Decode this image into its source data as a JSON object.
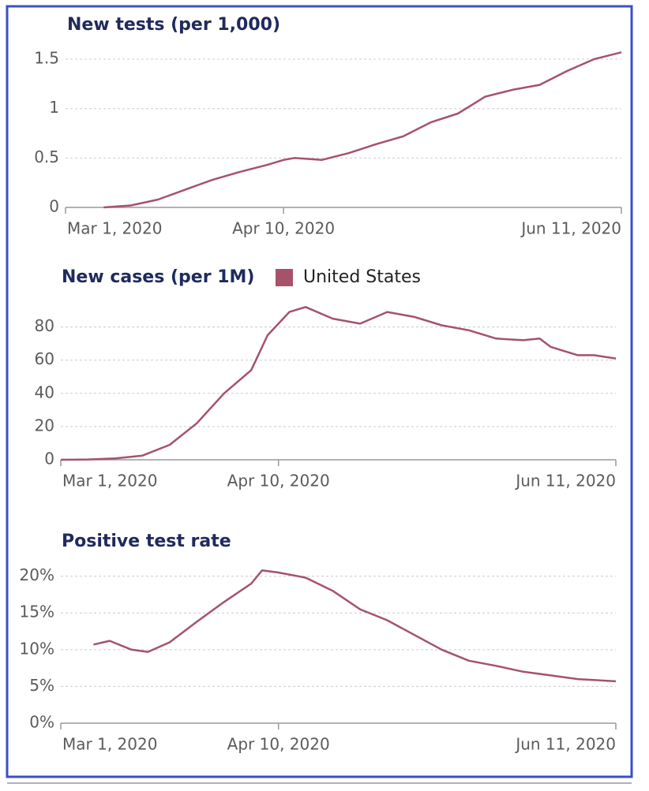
{
  "chart_data": [
    {
      "type": "line",
      "title": "New tests (per 1,000)",
      "color": "#a4536a",
      "grid": true,
      "x": [
        "2020-03-08",
        "2020-03-13",
        "2020-03-18",
        "2020-03-23",
        "2020-03-28",
        "2020-04-02",
        "2020-04-07",
        "2020-04-10",
        "2020-04-12",
        "2020-04-17",
        "2020-04-22",
        "2020-04-27",
        "2020-05-02",
        "2020-05-07",
        "2020-05-12",
        "2020-05-17",
        "2020-05-22",
        "2020-05-27",
        "2020-06-01",
        "2020-06-06",
        "2020-06-11"
      ],
      "values": [
        0,
        0.02,
        0.08,
        0.18,
        0.28,
        0.36,
        0.43,
        0.48,
        0.5,
        0.48,
        0.55,
        0.64,
        0.72,
        0.86,
        0.95,
        1.12,
        1.19,
        1.24,
        1.38,
        1.5,
        1.57
      ],
      "xlim": [
        "2020-03-01",
        "2020-06-11"
      ],
      "xticks": [
        {
          "value": "2020-03-01",
          "label": "Mar 1, 2020"
        },
        {
          "value": "2020-04-10",
          "label": "Apr 10, 2020"
        },
        {
          "value": "2020-06-11",
          "label": "Jun 11, 2020"
        }
      ],
      "ylim": [
        0,
        1.6
      ],
      "yticks": [
        0,
        0.5,
        1,
        1.5
      ]
    },
    {
      "type": "line",
      "title": "New cases (per 1M)",
      "grid": true,
      "x": [
        "2020-03-01",
        "2020-03-06",
        "2020-03-11",
        "2020-03-16",
        "2020-03-21",
        "2020-03-26",
        "2020-03-31",
        "2020-04-05",
        "2020-04-08",
        "2020-04-12",
        "2020-04-15",
        "2020-04-20",
        "2020-04-25",
        "2020-04-30",
        "2020-05-05",
        "2020-05-10",
        "2020-05-15",
        "2020-05-20",
        "2020-05-25",
        "2020-05-28",
        "2020-05-30",
        "2020-06-04",
        "2020-06-07",
        "2020-06-11"
      ],
      "series": [
        {
          "name": "United States",
          "color": "#a4536a",
          "values": [
            0,
            0.2,
            0.8,
            2.5,
            9,
            22,
            40,
            54,
            75,
            89,
            92,
            85,
            82,
            89,
            86,
            81,
            78,
            73,
            72,
            73,
            68,
            63,
            63,
            61
          ]
        }
      ],
      "xlim": [
        "2020-03-01",
        "2020-06-11"
      ],
      "xticks": [
        {
          "value": "2020-03-01",
          "label": "Mar 1, 2020"
        },
        {
          "value": "2020-04-10",
          "label": "Apr 10, 2020"
        },
        {
          "value": "2020-06-11",
          "label": "Jun 11, 2020"
        }
      ],
      "ylim": [
        0,
        95
      ],
      "yticks": [
        0,
        20,
        40,
        60,
        80
      ]
    },
    {
      "type": "line",
      "title": "Positive test rate",
      "color": "#a4536a",
      "grid": true,
      "x": [
        "2020-03-07",
        "2020-03-10",
        "2020-03-14",
        "2020-03-17",
        "2020-03-21",
        "2020-03-26",
        "2020-03-31",
        "2020-04-05",
        "2020-04-07",
        "2020-04-10",
        "2020-04-15",
        "2020-04-20",
        "2020-04-25",
        "2020-04-30",
        "2020-05-05",
        "2020-05-10",
        "2020-05-15",
        "2020-05-20",
        "2020-05-25",
        "2020-05-30",
        "2020-06-04",
        "2020-06-11"
      ],
      "values": [
        10.7,
        11.2,
        10,
        9.7,
        11,
        13.8,
        16.5,
        19,
        20.8,
        20.5,
        19.8,
        18,
        15.5,
        14,
        12,
        10,
        8.5,
        7.8,
        7,
        6.5,
        6,
        5.7
      ],
      "xlim": [
        "2020-03-01",
        "2020-06-11"
      ],
      "xticks": [
        {
          "value": "2020-03-01",
          "label": "Mar 1, 2020"
        },
        {
          "value": "2020-04-10",
          "label": "Apr 10, 2020"
        },
        {
          "value": "2020-06-11",
          "label": "Jun 11, 2020"
        }
      ],
      "ylim": [
        0,
        22
      ],
      "yticks": [
        {
          "value": 0,
          "label": "0%"
        },
        {
          "value": 5,
          "label": "5%"
        },
        {
          "value": 10,
          "label": "10%"
        },
        {
          "value": 15,
          "label": "15%"
        },
        {
          "value": 20,
          "label": "20%"
        }
      ]
    }
  ]
}
